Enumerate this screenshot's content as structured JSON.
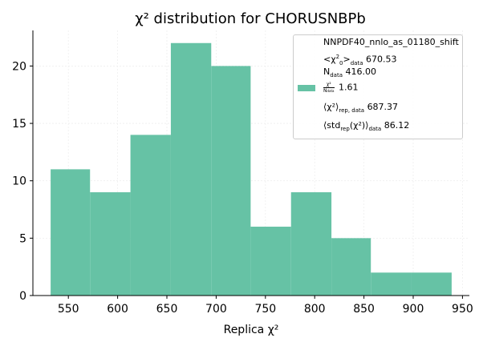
{
  "chart_data": {
    "type": "histogram",
    "title": "χ² distribution for CHORUSNBPb",
    "xlabel": "Replica χ²",
    "ylabel": "",
    "bin_edges": [
      532,
      572,
      613,
      654,
      695,
      735,
      776,
      817,
      857,
      898,
      939
    ],
    "counts": [
      11,
      9,
      14,
      22,
      20,
      6,
      9,
      5,
      2,
      2
    ],
    "xlim": [
      514,
      957
    ],
    "ylim": [
      0,
      23.1
    ],
    "xticks": [
      550,
      600,
      650,
      700,
      750,
      800,
      850,
      900,
      950
    ],
    "yticks": [
      0,
      5,
      10,
      15,
      20
    ],
    "grid": true,
    "legend_position": "top-right",
    "bar_color": "#66c2a5"
  },
  "legend": {
    "label": "NNPDF40_nnlo_as_01180_shift",
    "chi2_mean_prefix": "<χ",
    "chi2_mean_sub": "0",
    "chi2_mean_sup": "2",
    "chi2_mean_mid": ">",
    "chi2_mean_subscript": "data",
    "chi2_mean_value": "670.53",
    "ndata_main": "N",
    "ndata_sub": "data",
    "ndata_value": "416.00",
    "ratio_num": "χ²",
    "ratio_den": "N",
    "ratio_den_sub": "data",
    "ratio_value": "1.61",
    "chi2_rep_main": "⟨χ²⟩",
    "chi2_rep_sub": "rep, data",
    "chi2_rep_value": "687.37",
    "std_open": "⟨std",
    "std_sub1": "rep",
    "std_mid": "(χ²)⟩",
    "std_sub2": "data",
    "std_value": "86.12"
  }
}
